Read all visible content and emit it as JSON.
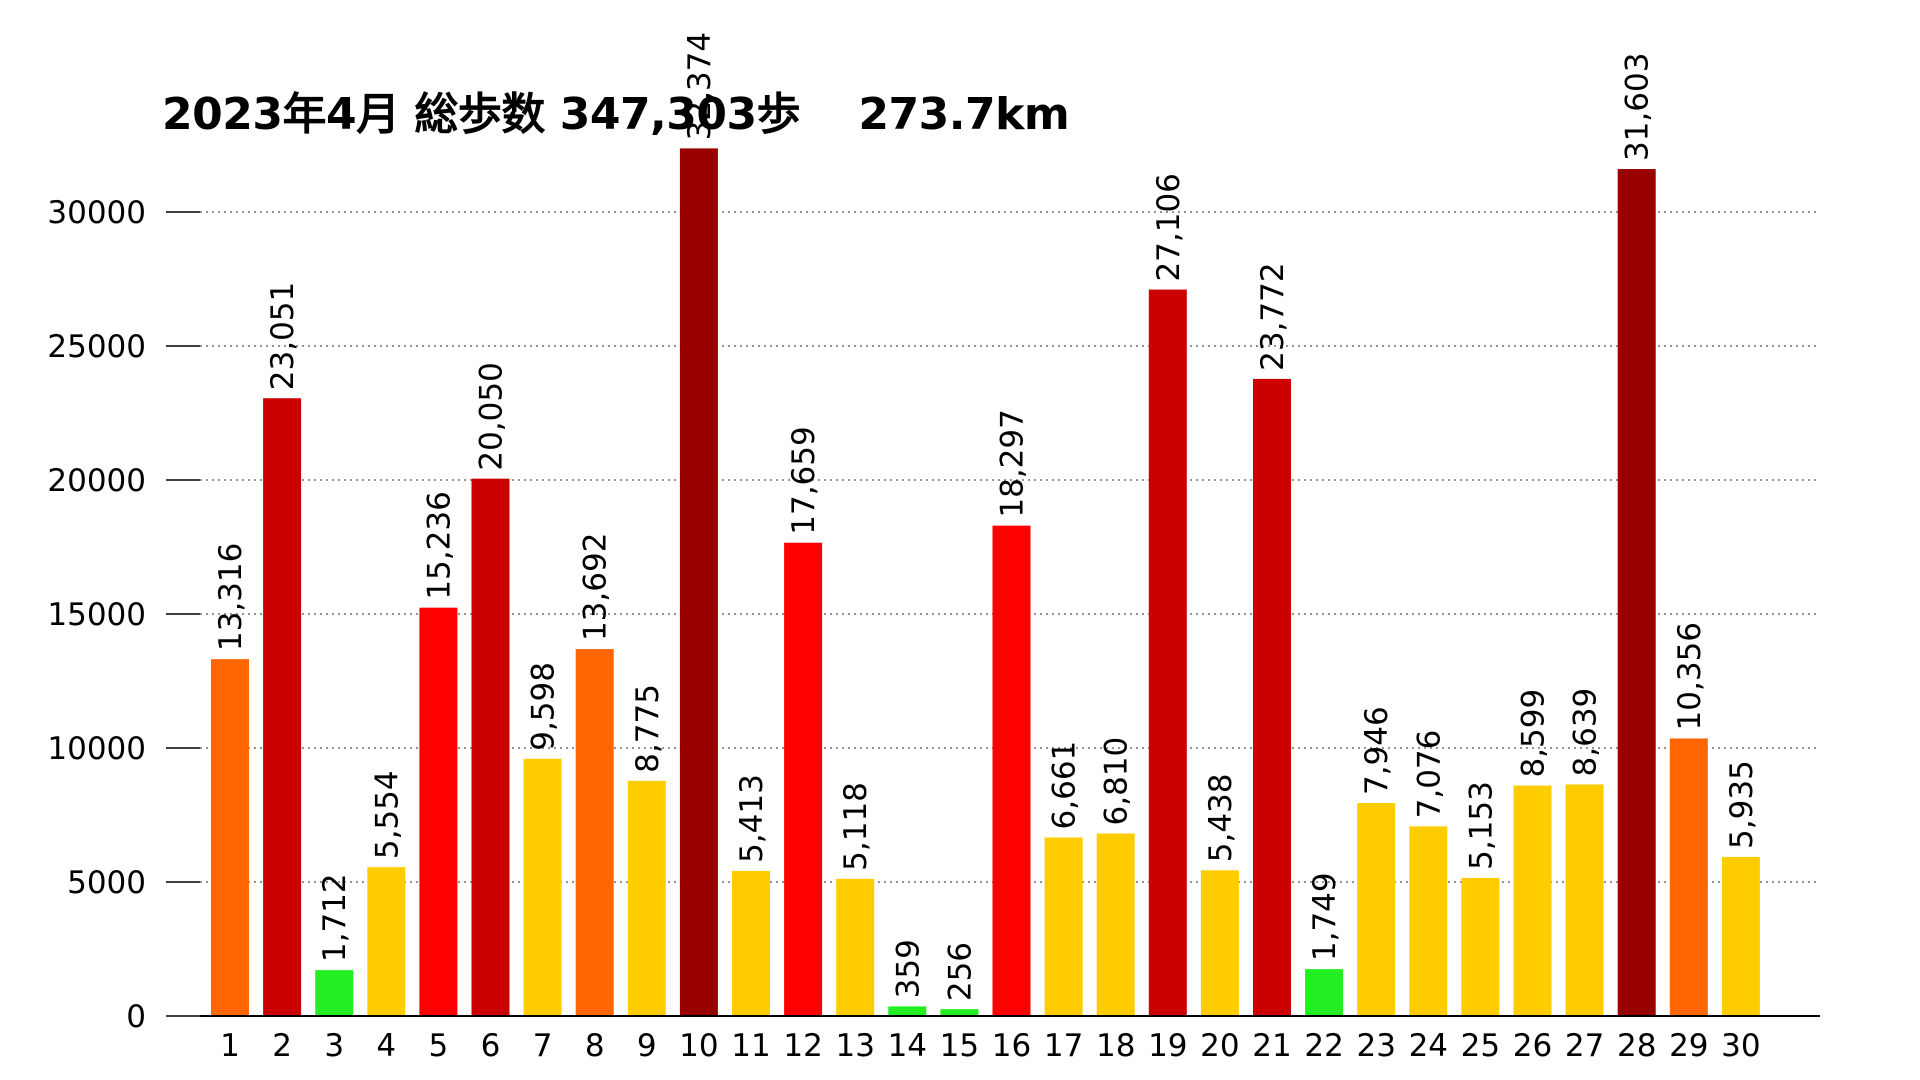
{
  "chart_data": {
    "type": "bar",
    "title": "2023年4月 総歩数 347,303歩　 273.7km",
    "xlabel": "",
    "ylabel": "",
    "ylim": [
      0,
      32500
    ],
    "yticks": [
      0,
      5000,
      10000,
      15000,
      20000,
      25000,
      30000
    ],
    "grid": "horizontal-dotted",
    "categories": [
      "1",
      "2",
      "3",
      "4",
      "5",
      "6",
      "7",
      "8",
      "9",
      "10",
      "11",
      "12",
      "13",
      "14",
      "15",
      "16",
      "17",
      "18",
      "19",
      "20",
      "21",
      "22",
      "23",
      "24",
      "25",
      "26",
      "27",
      "28",
      "29",
      "30"
    ],
    "values": [
      13316,
      23051,
      1712,
      5554,
      15236,
      20050,
      9598,
      13692,
      8775,
      32374,
      5413,
      17659,
      5118,
      359,
      256,
      18297,
      6661,
      6810,
      27106,
      5438,
      23772,
      1749,
      7946,
      7076,
      5153,
      8599,
      8639,
      31603,
      10356,
      5935
    ],
    "data_labels": [
      "13,316",
      "23,051",
      "1,712",
      "5,554",
      "15,236",
      "20,050",
      "9,598",
      "13,692",
      "8,775",
      "32,374",
      "5,413",
      "17,659",
      "5,118",
      "359",
      "256",
      "18,297",
      "6,661",
      "6,810",
      "27,106",
      "5,438",
      "23,772",
      "1,749",
      "7,946",
      "7,076",
      "5,153",
      "8,599",
      "8,639",
      "31,603",
      "10,356",
      "5,935"
    ],
    "color_bands": [
      {
        "min": 0,
        "max": 3000,
        "color": "#22ee22"
      },
      {
        "min": 3000,
        "max": 10000,
        "color": "#ffcc00"
      },
      {
        "min": 10000,
        "max": 15000,
        "color": "#ff6600"
      },
      {
        "min": 15000,
        "max": 20000,
        "color": "#ff0000"
      },
      {
        "min": 20000,
        "max": 30000,
        "color": "#cc0000"
      },
      {
        "min": 30000,
        "max": 100000,
        "color": "#990000"
      }
    ]
  }
}
